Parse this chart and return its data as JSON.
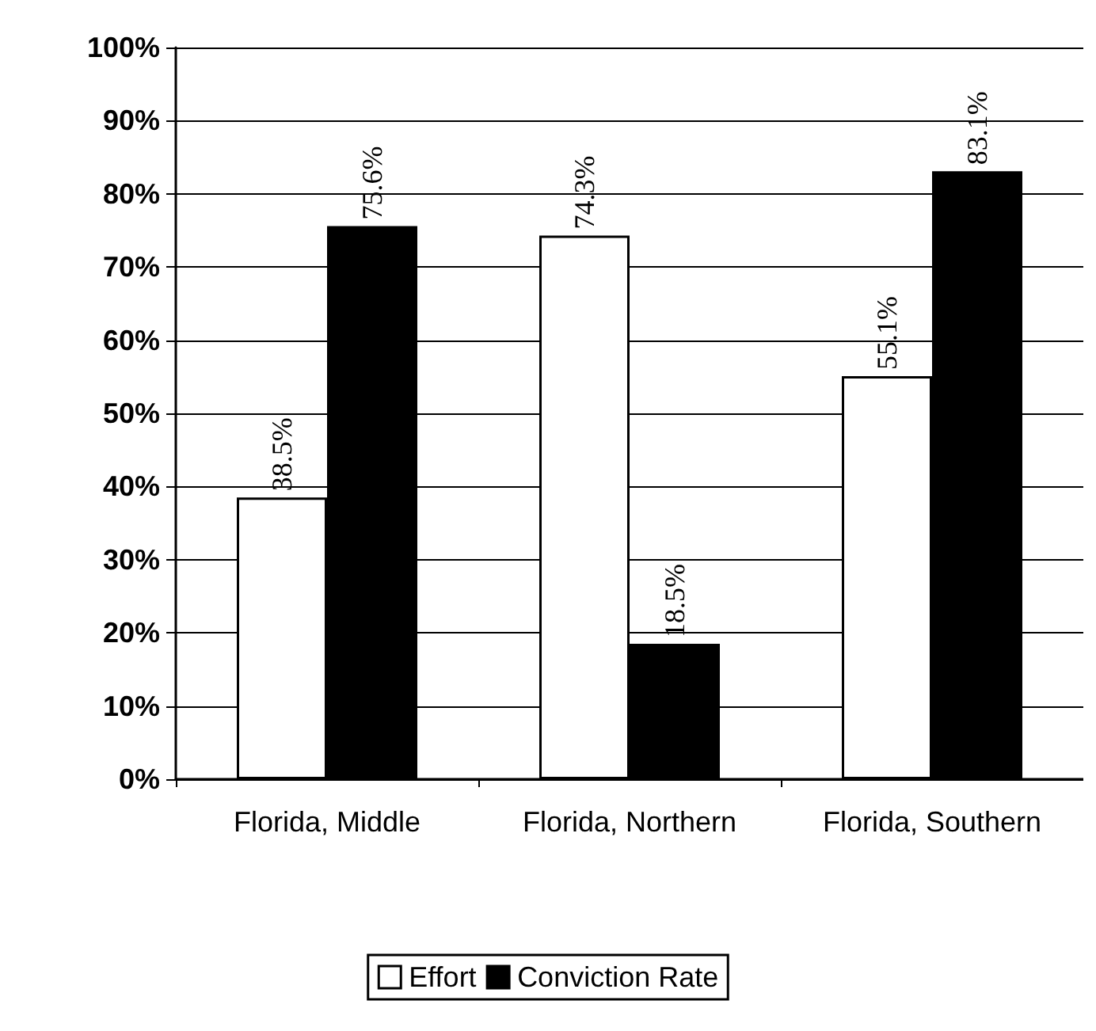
{
  "chart_data": {
    "type": "bar",
    "categories": [
      "Florida, Middle",
      "Florida, Northern",
      "Florida, Southern"
    ],
    "series": [
      {
        "name": "Effort",
        "color": "#ffffff",
        "values": [
          38.5,
          74.3,
          55.1
        ],
        "value_labels": [
          "38.5%",
          "74.3%",
          "55.1%"
        ]
      },
      {
        "name": "Conviction Rate",
        "color": "#000000",
        "values": [
          75.6,
          18.5,
          83.1
        ],
        "value_labels": [
          "75.6%",
          "18.5%",
          "83.1%"
        ]
      }
    ],
    "ylim": [
      0,
      100
    ],
    "yticks": [
      {
        "value": 0,
        "label": "0%"
      },
      {
        "value": 10,
        "label": "10%"
      },
      {
        "value": 20,
        "label": "20%"
      },
      {
        "value": 30,
        "label": "30%"
      },
      {
        "value": 40,
        "label": "40%"
      },
      {
        "value": 50,
        "label": "50%"
      },
      {
        "value": 60,
        "label": "60%"
      },
      {
        "value": 70,
        "label": "70%"
      },
      {
        "value": 80,
        "label": "80%"
      },
      {
        "value": 90,
        "label": "90%"
      },
      {
        "value": 100,
        "label": "100%"
      }
    ],
    "grid": "y",
    "legend": "bottom"
  }
}
